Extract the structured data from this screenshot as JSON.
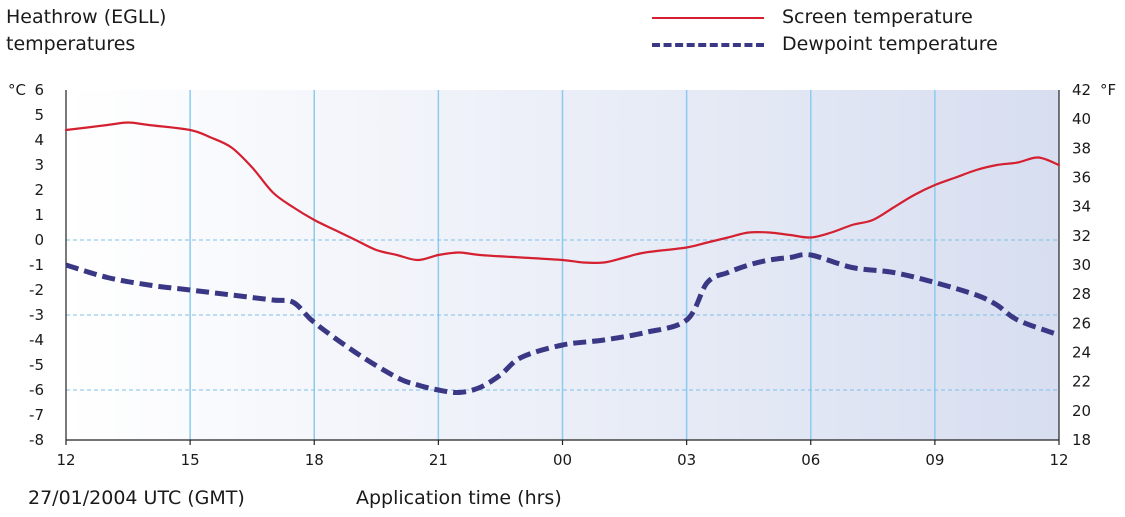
{
  "chart_title_lines": [
    "Heathrow (EGLL)",
    "temperatures"
  ],
  "footer": {
    "date": "27/01/2004 UTC (GMT)",
    "xlabel": "Application time (hrs)"
  },
  "chart_data": {
    "type": "line",
    "title": "Heathrow (EGLL) temperatures",
    "xlabel": "Application time (hrs)",
    "x_tick_labels": [
      "12",
      "15",
      "18",
      "21",
      "00",
      "03",
      "06",
      "09",
      "12"
    ],
    "x_range_hours": [
      0,
      24
    ],
    "left_axis": {
      "unit": "°C",
      "ylim": [
        -8,
        6
      ],
      "ticks": [
        -8,
        -7,
        -6,
        -5,
        -4,
        -3,
        -2,
        -1,
        0,
        1,
        2,
        3,
        4,
        5,
        6
      ]
    },
    "right_axis": {
      "unit": "°F",
      "ylim": [
        18,
        42
      ],
      "ticks": [
        18,
        20,
        22,
        24,
        26,
        28,
        30,
        32,
        34,
        36,
        38,
        40,
        42
      ]
    },
    "horizontal_dashed_gridlines_c": [
      0,
      -3,
      -6
    ],
    "vertical_gridlines": true,
    "legend": "top-right",
    "series": [
      {
        "name": "Screen temperature",
        "color": "#d42030",
        "style": "solid",
        "x": [
          0,
          1,
          1.5,
          2,
          3,
          3.5,
          4,
          4.5,
          5,
          5.5,
          6,
          6.5,
          7,
          7.5,
          8,
          8.5,
          9,
          9.5,
          10,
          11,
          12,
          12.5,
          13,
          13.5,
          14,
          15,
          15.5,
          16,
          16.5,
          17,
          17.5,
          18,
          18.5,
          19,
          19.5,
          20,
          20.5,
          21,
          21.5,
          22,
          22.5,
          23,
          23.5,
          24
        ],
        "y": [
          4.4,
          4.6,
          4.7,
          4.6,
          4.4,
          4.1,
          3.7,
          2.9,
          1.9,
          1.3,
          0.8,
          0.4,
          0.0,
          -0.4,
          -0.6,
          -0.8,
          -0.6,
          -0.5,
          -0.6,
          -0.7,
          -0.8,
          -0.9,
          -0.9,
          -0.7,
          -0.5,
          -0.3,
          -0.1,
          0.1,
          0.3,
          0.3,
          0.2,
          0.1,
          0.3,
          0.6,
          0.8,
          1.3,
          1.8,
          2.2,
          2.5,
          2.8,
          3.0,
          3.1,
          3.3,
          3.0
        ]
      },
      {
        "name": "Dewpoint temperature",
        "color": "#3a3785",
        "style": "dashed",
        "x": [
          0,
          1,
          2,
          3,
          4,
          5,
          5.5,
          6,
          7,
          8,
          8.5,
          9,
          9.5,
          10,
          10.5,
          11,
          12,
          13,
          14,
          15,
          15.5,
          16,
          16.5,
          17,
          17.5,
          18,
          19,
          20,
          21,
          22,
          22.5,
          23,
          24
        ],
        "y": [
          -1.0,
          -1.5,
          -1.8,
          -2.0,
          -2.2,
          -2.4,
          -2.5,
          -3.3,
          -4.5,
          -5.5,
          -5.8,
          -6.0,
          -6.1,
          -5.9,
          -5.4,
          -4.7,
          -4.2,
          -4.0,
          -3.7,
          -3.2,
          -1.7,
          -1.3,
          -1.0,
          -0.8,
          -0.7,
          -0.6,
          -1.1,
          -1.3,
          -1.7,
          -2.2,
          -2.6,
          -3.2,
          -3.8
        ]
      }
    ]
  }
}
